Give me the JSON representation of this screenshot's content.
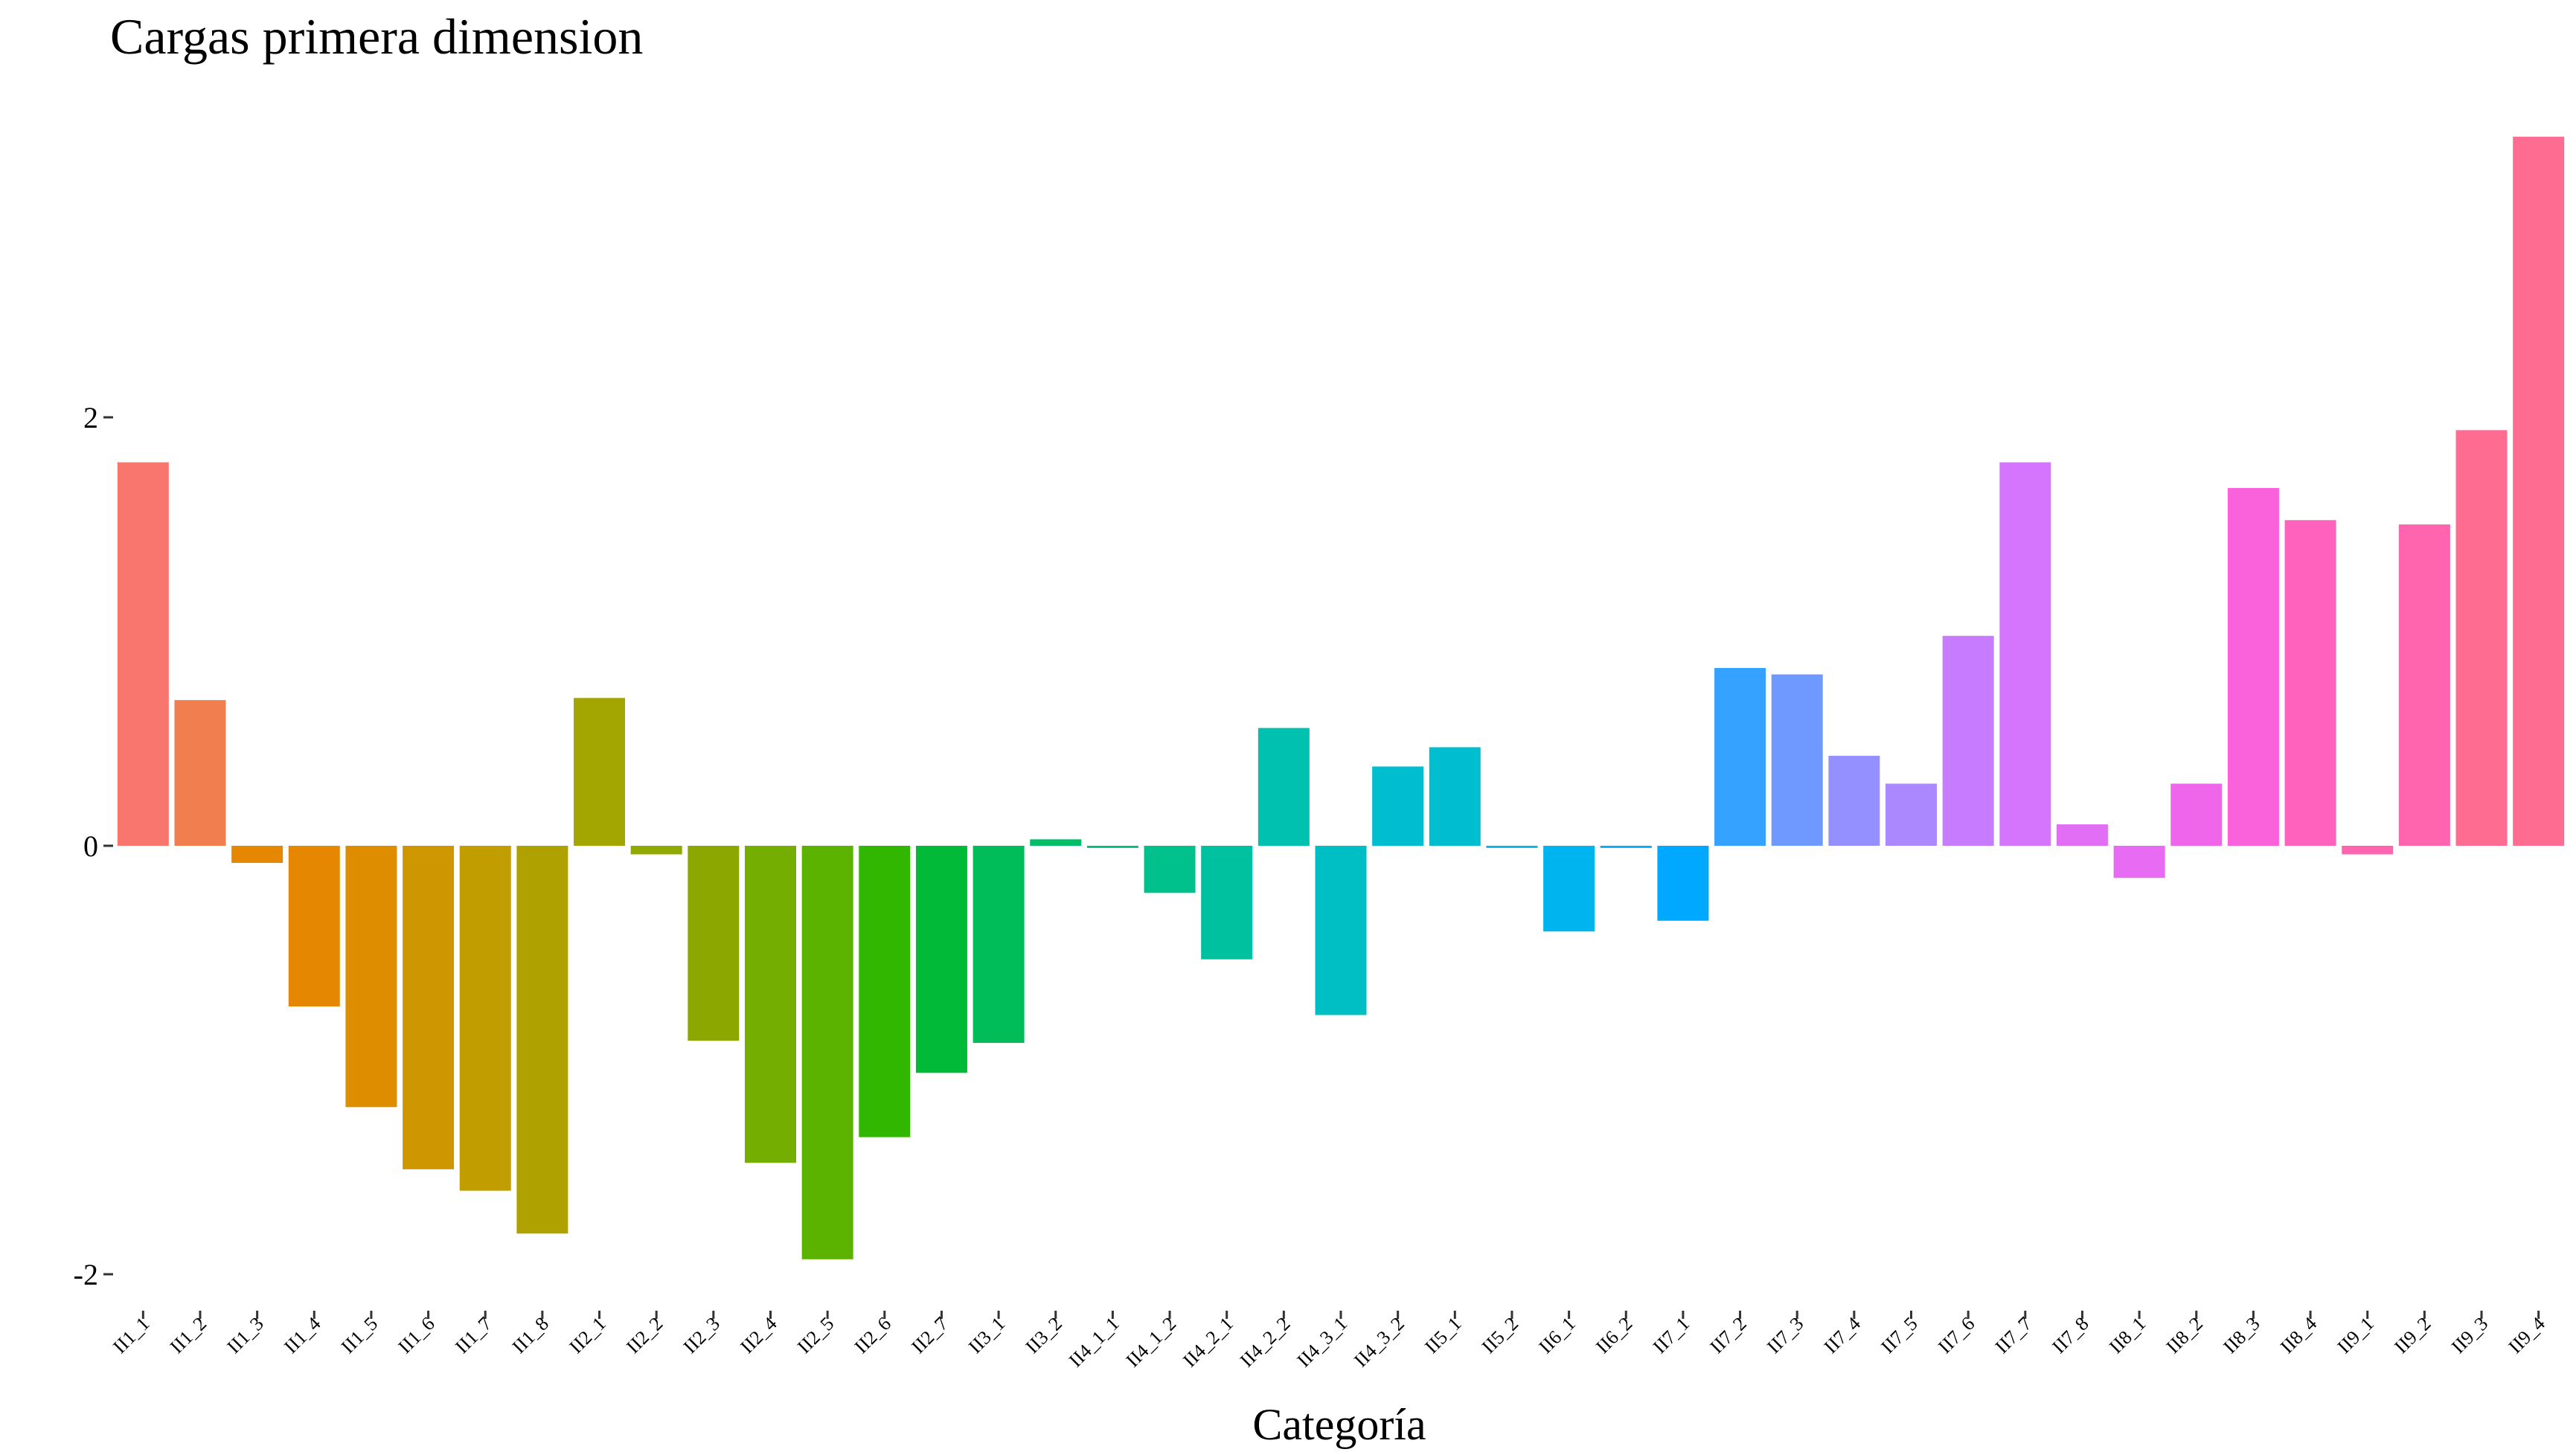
{
  "chart_data": {
    "type": "bar",
    "title": "Cargas primera dimension",
    "xlabel": "Categoría",
    "ylabel": "",
    "ylim": [
      -2.13,
      3.3
    ],
    "yticks": [
      -2,
      0,
      2
    ],
    "ytick_labels": [
      "-2",
      "0",
      "2"
    ],
    "grid": false,
    "legend": "none",
    "categories": [
      "II1_1",
      "II1_2",
      "II1_3",
      "II1_4",
      "II1_5",
      "II1_6",
      "II1_7",
      "II1_8",
      "II2_1",
      "II2_2",
      "II2_3",
      "II2_4",
      "II2_5",
      "II2_6",
      "II2_7",
      "II3_1",
      "II3_2",
      "II4_1_1",
      "II4_1_2",
      "II4_2_1",
      "II4_2_2",
      "II4_3_1",
      "II4_3_2",
      "II5_1",
      "II5_2",
      "II6_1",
      "II6_2",
      "II7_1",
      "II7_2",
      "II7_3",
      "II7_4",
      "II7_5",
      "II7_6",
      "II7_7",
      "II7_8",
      "II8_1",
      "II8_2",
      "II8_3",
      "II8_4",
      "II9_1",
      "II9_2",
      "II9_3",
      "II9_4"
    ],
    "values": [
      1.79,
      0.68,
      -0.08,
      -0.75,
      -1.22,
      -1.51,
      -1.61,
      -1.81,
      0.69,
      -0.04,
      -0.91,
      -1.48,
      -1.93,
      -1.36,
      -1.06,
      -0.92,
      0.03,
      -0.01,
      -0.22,
      -0.53,
      0.55,
      -0.79,
      0.37,
      0.46,
      -0.01,
      -0.4,
      -0.01,
      -0.35,
      0.83,
      0.8,
      0.42,
      0.29,
      0.98,
      1.79,
      0.1,
      -0.15,
      0.29,
      1.67,
      1.52,
      -0.04,
      1.5,
      1.94,
      3.31
    ],
    "colors": [
      "#F8766D",
      "#F07E4F",
      "#E58700",
      "#E58700",
      "#DE8C00",
      "#CE9600",
      "#C19D00",
      "#AFA100",
      "#A3A500",
      "#8FA900",
      "#8BA700",
      "#74AE00",
      "#5BB300",
      "#31B700",
      "#00BA38",
      "#00BC59",
      "#00BE67",
      "#00BF7D",
      "#00C08B",
      "#00C19F",
      "#00C0AF",
      "#00BFC4",
      "#00BDD0",
      "#00BDD0",
      "#00B8E5",
      "#00B4EF",
      "#00ACFC",
      "#00A9FF",
      "#35A2FF",
      "#7099FF",
      "#9590FF",
      "#AC88FF",
      "#C77CFF",
      "#D575FE",
      "#E36EF6",
      "#E76BF3",
      "#F066EA",
      "#FA62DB",
      "#FF62BC",
      "#FF65AE",
      "#FF65AE",
      "#FF6C91",
      "#FF6C91"
    ]
  }
}
